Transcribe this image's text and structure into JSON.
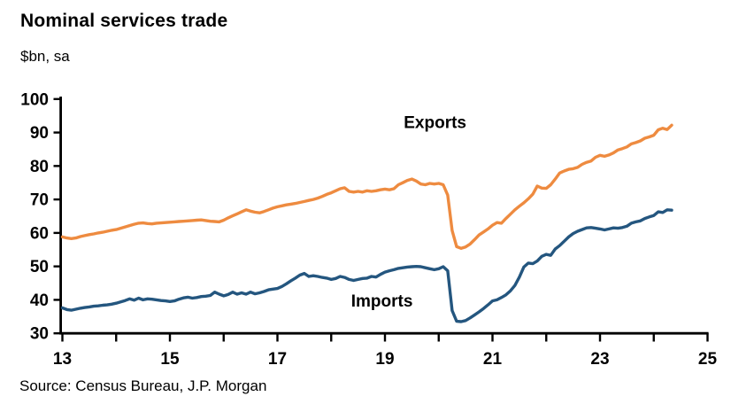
{
  "header": {
    "title": "Nominal services trade",
    "subtitle": "$bn, sa"
  },
  "footer": {
    "source": "Source: Census Bureau, J.P. Morgan"
  },
  "chart_data": {
    "type": "line",
    "title": "Nominal services trade",
    "ylabel": "$bn, sa",
    "frequency": "monthly",
    "x_start_year": 13.0,
    "x_axis": {
      "min": 13,
      "max": 25,
      "tick_every_years": 1,
      "labeled_ticks": [
        13,
        15,
        17,
        19,
        21,
        23,
        25
      ],
      "labels": [
        "13",
        "15",
        "17",
        "19",
        "21",
        "23",
        "25"
      ]
    },
    "y_axis": {
      "min": 30,
      "max": 100,
      "tick_step": 10,
      "labels": [
        "30",
        "40",
        "50",
        "60",
        "70",
        "80",
        "90",
        "100"
      ]
    },
    "grid": false,
    "legend": "inline-annotations",
    "annotations": [
      {
        "text": "Exports",
        "year": 19.35,
        "value": 91.3
      },
      {
        "text": "Imports",
        "year": 18.37,
        "value": 38.0
      }
    ],
    "series": [
      {
        "name": "Exports",
        "color": "#EE8B40",
        "values": [
          58.8,
          58.5,
          58.3,
          58.5,
          58.9,
          59.2,
          59.5,
          59.7,
          60.0,
          60.2,
          60.5,
          60.8,
          61.0,
          61.4,
          61.8,
          62.2,
          62.6,
          62.9,
          63.0,
          62.8,
          62.7,
          62.9,
          63.0,
          63.1,
          63.2,
          63.3,
          63.4,
          63.5,
          63.6,
          63.7,
          63.8,
          63.9,
          63.7,
          63.5,
          63.4,
          63.3,
          63.8,
          64.5,
          65.1,
          65.7,
          66.3,
          66.9,
          66.5,
          66.2,
          66.0,
          66.4,
          66.9,
          67.4,
          67.8,
          68.1,
          68.4,
          68.6,
          68.8,
          69.1,
          69.4,
          69.7,
          70.0,
          70.4,
          70.9,
          71.5,
          72.0,
          72.6,
          73.2,
          73.5,
          72.4,
          72.2,
          72.4,
          72.2,
          72.6,
          72.4,
          72.6,
          72.9,
          73.1,
          72.9,
          73.2,
          74.4,
          75.0,
          75.7,
          76.1,
          75.5,
          74.6,
          74.4,
          74.8,
          74.6,
          74.8,
          74.4,
          71.3,
          60.7,
          55.9,
          55.4,
          55.8,
          56.7,
          58.0,
          59.4,
          60.3,
          61.2,
          62.3,
          63.1,
          62.9,
          64.3,
          65.6,
          66.9,
          68.0,
          69.0,
          70.2,
          71.6,
          74.0,
          73.4,
          73.3,
          74.4,
          76.1,
          77.9,
          78.5,
          79.0,
          79.2,
          79.6,
          80.5,
          81.1,
          81.5,
          82.6,
          83.2,
          82.9,
          83.3,
          83.9,
          84.8,
          85.2,
          85.7,
          86.6,
          87.0,
          87.5,
          88.3,
          88.7,
          89.2,
          90.8,
          91.3,
          90.9,
          92.2
        ]
      },
      {
        "name": "Imports",
        "color": "#24567F",
        "values": [
          37.6,
          37.1,
          36.9,
          37.2,
          37.5,
          37.7,
          37.9,
          38.1,
          38.2,
          38.4,
          38.5,
          38.7,
          39.0,
          39.4,
          39.8,
          40.3,
          39.9,
          40.5,
          40.0,
          40.3,
          40.2,
          40.0,
          39.8,
          39.7,
          39.5,
          39.7,
          40.2,
          40.6,
          40.8,
          40.5,
          40.7,
          41.0,
          41.1,
          41.3,
          42.3,
          41.7,
          41.2,
          41.6,
          42.3,
          41.7,
          42.1,
          41.7,
          42.3,
          41.8,
          42.1,
          42.5,
          43.0,
          43.2,
          43.4,
          44.0,
          44.8,
          45.7,
          46.5,
          47.4,
          47.9,
          47.0,
          47.2,
          47.0,
          46.7,
          46.5,
          46.1,
          46.4,
          47.0,
          46.7,
          46.1,
          45.8,
          46.1,
          46.4,
          46.5,
          47.0,
          46.8,
          47.6,
          48.3,
          48.7,
          49.0,
          49.4,
          49.6,
          49.8,
          49.9,
          50.0,
          49.9,
          49.6,
          49.3,
          49.0,
          49.3,
          49.9,
          48.7,
          36.8,
          33.6,
          33.5,
          33.8,
          34.6,
          35.5,
          36.4,
          37.4,
          38.5,
          39.7,
          40.0,
          40.7,
          41.5,
          42.7,
          44.3,
          46.8,
          49.8,
          51.0,
          50.8,
          51.6,
          53.0,
          53.6,
          53.3,
          55.2,
          56.2,
          57.5,
          58.8,
          59.8,
          60.5,
          61.0,
          61.5,
          61.6,
          61.4,
          61.2,
          60.9,
          61.2,
          61.5,
          61.4,
          61.6,
          62.0,
          62.9,
          63.3,
          63.6,
          64.3,
          64.8,
          65.2,
          66.3,
          66.1,
          66.9,
          66.8
        ]
      }
    ]
  }
}
